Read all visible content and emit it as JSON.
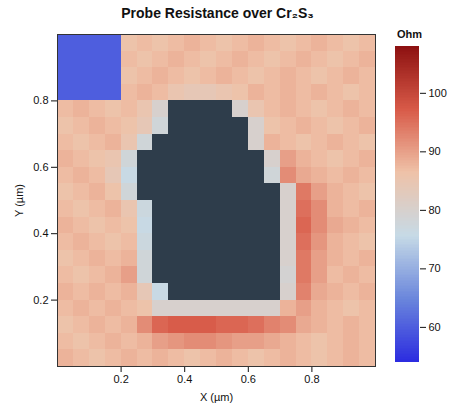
{
  "chart_data": {
    "type": "heatmap",
    "title": "Probe Resistance over Cr₂S₃",
    "x_label": "X (µm)",
    "y_label": "Y (µm)",
    "xlim": [
      0,
      1
    ],
    "ylim": [
      0,
      1
    ],
    "xticks": [
      0.2,
      0.4,
      0.6,
      0.8
    ],
    "yticks": [
      0.2,
      0.4,
      0.6,
      0.8
    ],
    "x_bins": [
      0,
      0.05,
      0.1,
      0.15,
      0.2,
      0.25,
      0.3,
      0.35,
      0.4,
      0.45,
      0.5,
      0.55,
      0.6,
      0.65,
      0.7,
      0.75,
      0.8,
      0.85,
      0.9,
      0.95,
      1
    ],
    "y_bins": [
      1,
      0.95,
      0.9,
      0.85,
      0.8,
      0.75,
      0.7,
      0.65,
      0.6,
      0.55,
      0.5,
      0.45,
      0.4,
      0.35,
      0.3,
      0.25,
      0.2,
      0.15,
      0.1,
      0.05,
      0
    ],
    "cells": [
      [
        60,
        60,
        60,
        60,
        86,
        87,
        86,
        87,
        88,
        87,
        86,
        87,
        88,
        87,
        86,
        87,
        88,
        87,
        86,
        87
      ],
      [
        60,
        60,
        60,
        60,
        87,
        86,
        87,
        88,
        87,
        86,
        87,
        88,
        87,
        86,
        87,
        88,
        87,
        86,
        87,
        88
      ],
      [
        60,
        60,
        60,
        60,
        86,
        87,
        88,
        87,
        86,
        87,
        88,
        87,
        86,
        87,
        88,
        87,
        86,
        87,
        88,
        87
      ],
      [
        60,
        60,
        60,
        60,
        87,
        88,
        87,
        85,
        84,
        84,
        85,
        86,
        88,
        87,
        88,
        87,
        88,
        87,
        86,
        87
      ],
      [
        87,
        88,
        87,
        86,
        87,
        85,
        80,
        null,
        null,
        null,
        null,
        80,
        85,
        87,
        88,
        87,
        86,
        87,
        88,
        87
      ],
      [
        86,
        87,
        88,
        87,
        86,
        84,
        78,
        null,
        null,
        null,
        null,
        null,
        80,
        86,
        87,
        88,
        87,
        86,
        87,
        88
      ],
      [
        87,
        86,
        87,
        88,
        85,
        78,
        null,
        null,
        null,
        null,
        null,
        null,
        80,
        88,
        87,
        86,
        87,
        88,
        87,
        86
      ],
      [
        88,
        87,
        86,
        85,
        78,
        null,
        null,
        null,
        null,
        null,
        null,
        null,
        null,
        80,
        90,
        88,
        87,
        86,
        87,
        88
      ],
      [
        87,
        88,
        87,
        84,
        76,
        null,
        null,
        null,
        null,
        null,
        null,
        null,
        null,
        78,
        92,
        89,
        88,
        87,
        88,
        87
      ],
      [
        86,
        87,
        88,
        86,
        78,
        null,
        null,
        null,
        null,
        null,
        null,
        null,
        null,
        null,
        80,
        94,
        90,
        88,
        87,
        86
      ],
      [
        87,
        86,
        87,
        88,
        85,
        77,
        null,
        null,
        null,
        null,
        null,
        null,
        null,
        null,
        80,
        95,
        92,
        88,
        87,
        88
      ],
      [
        88,
        87,
        86,
        87,
        86,
        76,
        null,
        null,
        null,
        null,
        null,
        null,
        null,
        null,
        80,
        96,
        92,
        89,
        88,
        87
      ],
      [
        87,
        88,
        87,
        86,
        87,
        77,
        null,
        null,
        null,
        null,
        null,
        null,
        null,
        null,
        80,
        95,
        91,
        88,
        87,
        86
      ],
      [
        86,
        87,
        88,
        87,
        88,
        78,
        null,
        null,
        null,
        null,
        null,
        null,
        null,
        null,
        80,
        94,
        90,
        88,
        87,
        88
      ],
      [
        87,
        86,
        87,
        88,
        90,
        78,
        null,
        null,
        null,
        null,
        null,
        null,
        null,
        null,
        79,
        94,
        90,
        87,
        88,
        87
      ],
      [
        88,
        87,
        88,
        87,
        88,
        84,
        76,
        null,
        null,
        null,
        null,
        null,
        null,
        null,
        80,
        93,
        89,
        88,
        87,
        88
      ],
      [
        87,
        88,
        87,
        88,
        87,
        86,
        80,
        80,
        80,
        80,
        80,
        80,
        80,
        80,
        88,
        90,
        88,
        87,
        86,
        87
      ],
      [
        86,
        87,
        88,
        87,
        88,
        92,
        96,
        97,
        97,
        97,
        96,
        96,
        95,
        93,
        92,
        89,
        88,
        87,
        88,
        87
      ],
      [
        87,
        86,
        87,
        88,
        87,
        88,
        90,
        91,
        92,
        92,
        91,
        90,
        90,
        89,
        88,
        87,
        86,
        87,
        88,
        87
      ],
      [
        88,
        87,
        86,
        87,
        88,
        87,
        88,
        87,
        86,
        87,
        88,
        87,
        86,
        87,
        88,
        87,
        86,
        87,
        88,
        87
      ]
    ],
    "colorbar_label": "Ohm",
    "colorbar_range": [
      54,
      108
    ],
    "colorbar_ticks": [
      60,
      70,
      80,
      90,
      100
    ]
  }
}
